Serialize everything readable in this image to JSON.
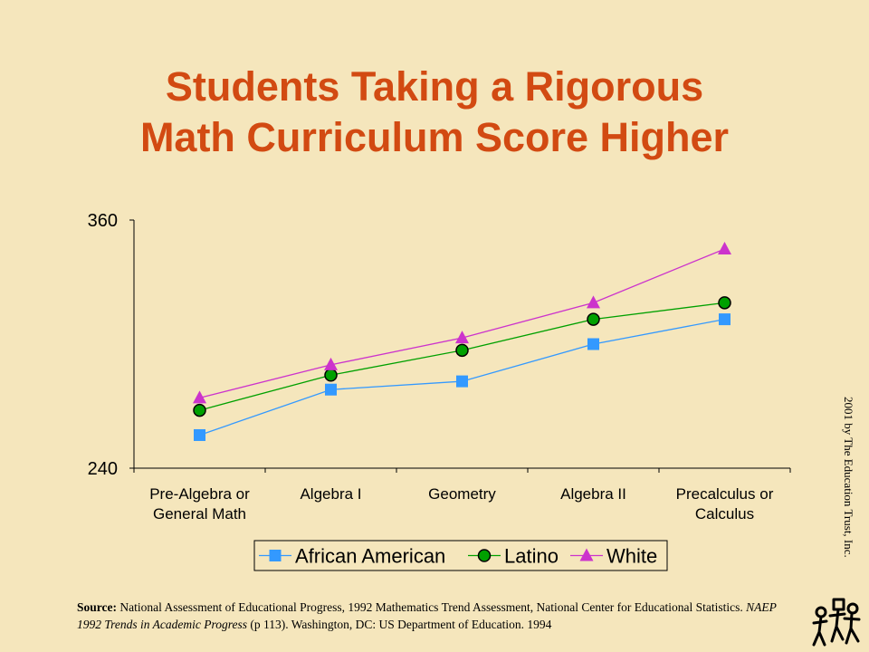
{
  "title_line1": "Students Taking a Rigorous",
  "title_line2": "Math Curriculum Score Higher",
  "copyright": "2001 by The Education Trust, Inc.",
  "source": {
    "label": "Source:",
    "text1": " National Assessment of Educational Progress, 1992 Mathematics Trend Assessment, National Center for Educational Statistics. ",
    "italic": "NAEP 1992 Trends in Academic Progress",
    "text2": " (p 113). Washington, DC: US Department of Education. 1994"
  },
  "logo_icon": "education-trust-logo-icon",
  "chart_data": {
    "type": "line",
    "categories": [
      [
        "Pre-Algebra or",
        "General Math"
      ],
      [
        "Algebra I"
      ],
      [
        "Geometry"
      ],
      [
        "Algebra II"
      ],
      [
        "Precalculus or",
        "Calculus"
      ]
    ],
    "ylim": [
      240,
      360
    ],
    "yticks": [
      "360",
      "240"
    ],
    "grid": false,
    "legend_position": "bottom",
    "series": [
      {
        "name": "African American",
        "marker": "square",
        "color": "#3399FF",
        "values": [
          256,
          278,
          282,
          300,
          312
        ]
      },
      {
        "name": "Latino",
        "marker": "circle",
        "color": "#00A000",
        "values": [
          268,
          285,
          297,
          312,
          320
        ]
      },
      {
        "name": "White",
        "marker": "triangle",
        "color": "#CC33CC",
        "values": [
          274,
          290,
          303,
          320,
          346
        ]
      }
    ]
  }
}
